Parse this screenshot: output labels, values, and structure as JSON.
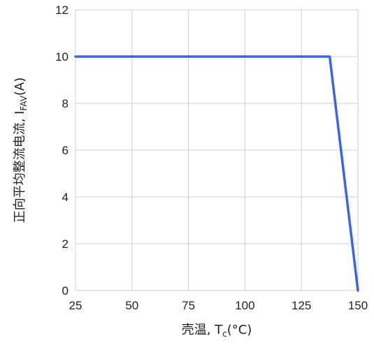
{
  "chart_data": {
    "type": "line",
    "xlabel": {
      "prefix": "壳温, T",
      "sub": "c",
      "suffix": "(°C)"
    },
    "ylabel": {
      "prefix": "正向平均整流电流, I",
      "sub": "FAV",
      "suffix": "(A)"
    },
    "xlim": [
      25,
      150
    ],
    "ylim": [
      0,
      12
    ],
    "x_ticks": [
      "25",
      "50",
      "75",
      "100",
      "125",
      "150"
    ],
    "y_ticks": [
      "0",
      "2",
      "4",
      "6",
      "8",
      "10",
      "12"
    ],
    "grid": true,
    "series": [
      {
        "color": "#3b63e8",
        "x": [
          25,
          137.5,
          150
        ],
        "y": [
          10,
          10,
          0
        ]
      }
    ]
  }
}
